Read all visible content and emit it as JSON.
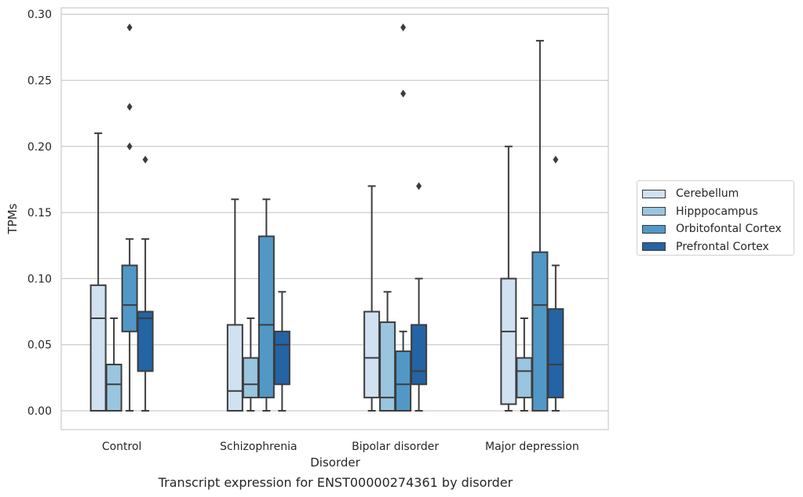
{
  "chart_data": {
    "type": "box",
    "title": "Transcript expression for ENST00000274361 by disorder",
    "xlabel": "Disorder",
    "ylabel": "TPMs",
    "ylim": [
      -0.014,
      0.305
    ],
    "yticks": [
      "0.00",
      "0.05",
      "0.10",
      "0.15",
      "0.20",
      "0.25",
      "0.30"
    ],
    "grid": true,
    "legend_position": "outside-right",
    "categories": [
      "Control",
      "Schizophrenia",
      "Bipolar disorder",
      "Major depression"
    ],
    "series": [
      {
        "name": "Cerebellum",
        "color": "#d0e1f2",
        "boxes": [
          {
            "whislo": 0.0,
            "q1": 0.0,
            "med": 0.07,
            "q3": 0.095,
            "whishi": 0.21,
            "fliers": []
          },
          {
            "whislo": 0.0,
            "q1": 0.0,
            "med": 0.015,
            "q3": 0.065,
            "whishi": 0.16,
            "fliers": []
          },
          {
            "whislo": 0.0,
            "q1": 0.01,
            "med": 0.04,
            "q3": 0.075,
            "whishi": 0.17,
            "fliers": []
          },
          {
            "whislo": 0.0,
            "q1": 0.005,
            "med": 0.06,
            "q3": 0.1,
            "whishi": 0.2,
            "fliers": []
          }
        ]
      },
      {
        "name": "Hipppocampus",
        "color": "#9ac5de",
        "boxes": [
          {
            "whislo": 0.0,
            "q1": 0.0,
            "med": 0.02,
            "q3": 0.035,
            "whishi": 0.07,
            "fliers": []
          },
          {
            "whislo": 0.0,
            "q1": 0.01,
            "med": 0.02,
            "q3": 0.04,
            "whishi": 0.07,
            "fliers": []
          },
          {
            "whislo": 0.0,
            "q1": 0.0,
            "med": 0.01,
            "q3": 0.067,
            "whishi": 0.09,
            "fliers": []
          },
          {
            "whislo": 0.0,
            "q1": 0.01,
            "med": 0.03,
            "q3": 0.04,
            "whishi": 0.07,
            "fliers": []
          }
        ]
      },
      {
        "name": "Orbitofontal Cortex",
        "color": "#5198c7",
        "boxes": [
          {
            "whislo": 0.0,
            "q1": 0.06,
            "med": 0.08,
            "q3": 0.11,
            "whishi": 0.13,
            "fliers": [
              0.2,
              0.23,
              0.29
            ]
          },
          {
            "whislo": 0.0,
            "q1": 0.01,
            "med": 0.065,
            "q3": 0.132,
            "whishi": 0.16,
            "fliers": []
          },
          {
            "whislo": 0.0,
            "q1": 0.0,
            "med": 0.02,
            "q3": 0.045,
            "whishi": 0.06,
            "fliers": [
              0.24,
              0.29
            ]
          },
          {
            "whislo": 0.0,
            "q1": 0.0,
            "med": 0.08,
            "q3": 0.12,
            "whishi": 0.28,
            "fliers": []
          }
        ]
      },
      {
        "name": "Prefrontal Cortex",
        "color": "#2463a4",
        "boxes": [
          {
            "whislo": 0.0,
            "q1": 0.03,
            "med": 0.07,
            "q3": 0.075,
            "whishi": 0.13,
            "fliers": [
              0.19
            ]
          },
          {
            "whislo": 0.0,
            "q1": 0.02,
            "med": 0.05,
            "q3": 0.06,
            "whishi": 0.09,
            "fliers": []
          },
          {
            "whislo": 0.0,
            "q1": 0.02,
            "med": 0.03,
            "q3": 0.065,
            "whishi": 0.1,
            "fliers": [
              0.17
            ]
          },
          {
            "whislo": 0.0,
            "q1": 0.01,
            "med": 0.035,
            "q3": 0.077,
            "whishi": 0.11,
            "fliers": [
              0.19
            ]
          }
        ]
      }
    ]
  }
}
